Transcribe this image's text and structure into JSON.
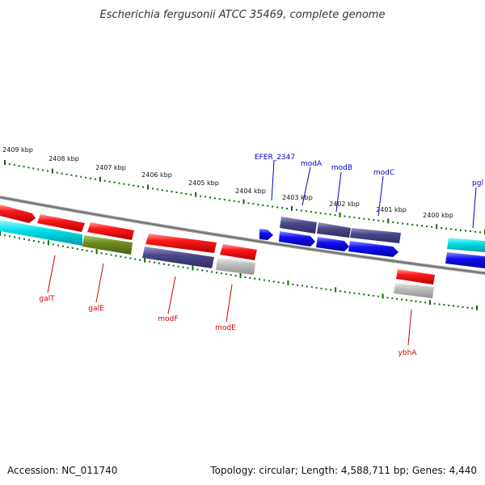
{
  "title": "Escherichia fergusonii ATCC 35469, complete genome",
  "footer": {
    "accession": "Accession: NC_011740",
    "topology": "Topology: circular; Length: 4,588,711 bp; Genes: 4,440"
  },
  "kbp_labels": [
    "2409 kbp",
    "2408 kbp",
    "2407 kbp",
    "2406 kbp",
    "2405 kbp",
    "2404 kbp",
    "2403 kbp",
    "2402 kbp",
    "2401 kbp",
    "2400 kbp"
  ],
  "genes_top": [
    "EFER_2347",
    "modA",
    "modB",
    "modC",
    "pgl"
  ],
  "genes_bottom": [
    "galT",
    "galE",
    "modF",
    "modE",
    "ybhA"
  ],
  "colors": {
    "red": "#ff0000",
    "cyan": "#00d8e0",
    "olive": "#6e8c1e",
    "navy": "#4b4888",
    "blue": "#0000ee",
    "gray": "#b4b4b4",
    "tick": "#007000",
    "backbone": "#888888",
    "label_top": "#0000cc",
    "label_bottom": "#cc0000"
  }
}
